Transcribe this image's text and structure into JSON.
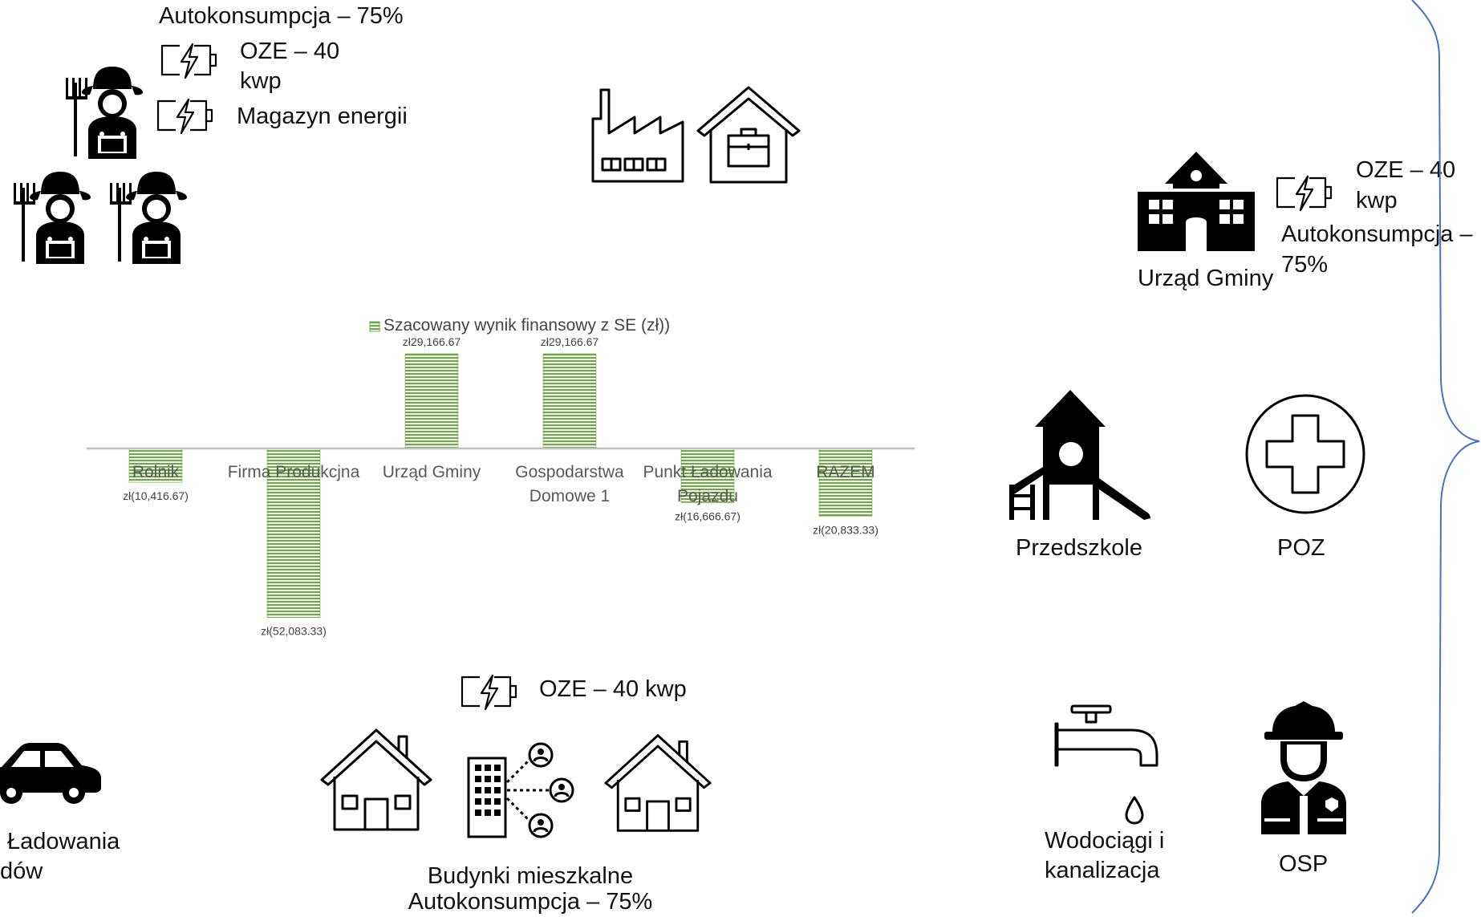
{
  "farmers": {
    "autokonsumpcja": "Autokonsumpcja – 75%",
    "oze_line1": "OZE – 40",
    "oze_line2": "kwp",
    "magazyn": "Magazyn energii"
  },
  "urzad": {
    "oze_line1": "OZE – 40",
    "oze_line2": "kwp",
    "auto_line1": "Autokonsumpcja –",
    "auto_line2": "75%",
    "label": "Urząd Gminy"
  },
  "services": {
    "przedszkole": "Przedszkole",
    "poz": "POZ",
    "wodociagi_line1": "Wodociągi i",
    "wodociagi_line2": "kanalizacja",
    "osp": "OSP"
  },
  "residential": {
    "oze": "OZE – 40 kwp",
    "label_line1": "Budynki mieszkalne",
    "label_line2": "Autokonsumpcja – 75%"
  },
  "vehicle": {
    "label_line1": "Ładowania",
    "label_line2": "dów"
  },
  "icons": [
    "farmer-icon",
    "battery-icon",
    "factory-icon",
    "house-briefcase-icon",
    "town-hall-icon",
    "playground-icon",
    "medical-cross-icon",
    "water-tap-icon",
    "firefighter-icon",
    "house-icon",
    "apartment-people-icon",
    "car-icon",
    "brace-icon"
  ],
  "chart_data": {
    "type": "bar",
    "legend": "Szacowany wynik finansowy z SE (zł))",
    "legend_position": "top",
    "categories": [
      "Rolnik",
      "Firma Produkcjna",
      "Urząd Gminy",
      "Gospodarstwa Domowe 1",
      "Punkt Ładowania Pojazdu",
      "RAZEM"
    ],
    "category_lines": [
      [
        "Rolnik"
      ],
      [
        "Firma Produkcjna"
      ],
      [
        "Urząd Gminy"
      ],
      [
        "Gospodarstwa",
        "Domowe 1"
      ],
      [
        "Punkt Ładowania",
        "Pojazdu"
      ],
      [
        "RAZEM"
      ]
    ],
    "series": [
      {
        "name": "Szacowany wynik finansowy z SE (zł))",
        "values": [
          -10416.67,
          -52083.33,
          29166.67,
          29166.67,
          -16666.67,
          -20833.33
        ]
      }
    ],
    "data_labels": [
      "zł(10,416.67)",
      "zł(52,083.33)",
      "zł29,166.67",
      "zł29,166.67",
      "zł(16,666.67)",
      "zł(20,833.33)"
    ],
    "ylim": [
      -55000,
      35000
    ],
    "grid": false,
    "bar_color": "#70a849",
    "axis_color": "#c0c0c0"
  }
}
